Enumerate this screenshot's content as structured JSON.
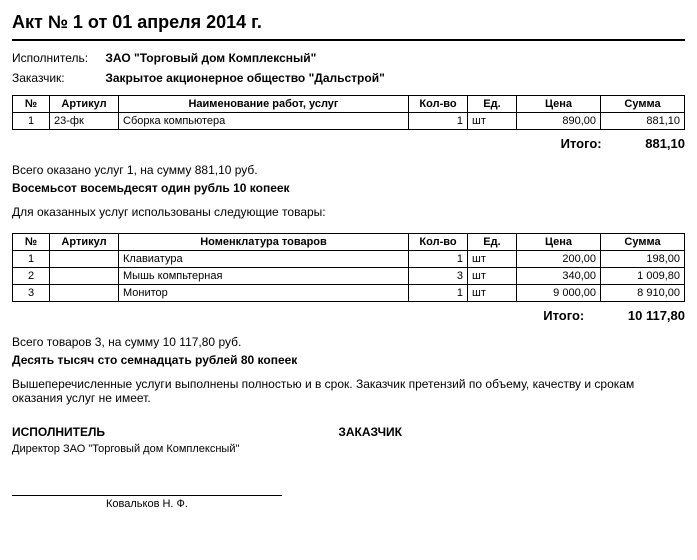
{
  "title": "Акт № 1 от 01 апреля 2014 г.",
  "parties": {
    "executor_label": "Исполнитель:",
    "executor_value": "ЗАО \"Торговый дом Комплексный\"",
    "customer_label": "Заказчик:",
    "customer_value": "Закрытое акционерное общество \"Дальстрой\""
  },
  "services": {
    "headers": {
      "num": "№",
      "art": "Артикул",
      "name": "Наименование работ, услуг",
      "qty": "Кол-во",
      "unit": "Ед.",
      "price": "Цена",
      "sum": "Сумма"
    },
    "rows": [
      {
        "num": "1",
        "art": "23-фк",
        "name": "Сборка компьютера",
        "qty": "1",
        "unit": "шт",
        "price": "890,00",
        "sum": "881,10"
      }
    ],
    "total_label": "Итого:",
    "total_value": "881,10",
    "summary": "Всего оказано услуг 1, на сумму 881,10 руб.",
    "summary_words": "Восемьсот восемьдесят один рубль 10 копеек"
  },
  "goods": {
    "intro": "Для оказанных услуг использованы следующие товары:",
    "headers": {
      "num": "№",
      "art": "Артикул",
      "name": "Номенклатура товаров",
      "qty": "Кол-во",
      "unit": "Ед.",
      "price": "Цена",
      "sum": "Сумма"
    },
    "rows": [
      {
        "num": "1",
        "art": "",
        "name": "Клавиатура",
        "qty": "1",
        "unit": "шт",
        "price": "200,00",
        "sum": "198,00"
      },
      {
        "num": "2",
        "art": "",
        "name": "Мышь компьтерная",
        "qty": "3",
        "unit": "шт",
        "price": "340,00",
        "sum": "1 009,80"
      },
      {
        "num": "3",
        "art": "",
        "name": "Монитор",
        "qty": "1",
        "unit": "шт",
        "price": "9 000,00",
        "sum": "8 910,00"
      }
    ],
    "total_label": "Итого:",
    "total_value": "10 117,80",
    "summary": "Всего товаров 3, на сумму 10 117,80 руб.",
    "summary_words": "Десять тысяч сто семнадцать рублей 80 копеек"
  },
  "note": "Вышеперечисленные услуги выполнены полностью и в срок. Заказчик претензий по объему, качеству и срокам оказания услуг не имеет.",
  "signatures": {
    "executor_title": "ИСПОЛНИТЕЛЬ",
    "executor_sub": "Директор ЗАО \"Торговый дом Комплексный\"",
    "executor_name": "Ковальков  Н. Ф.",
    "customer_title": "ЗАКАЗЧИК"
  }
}
